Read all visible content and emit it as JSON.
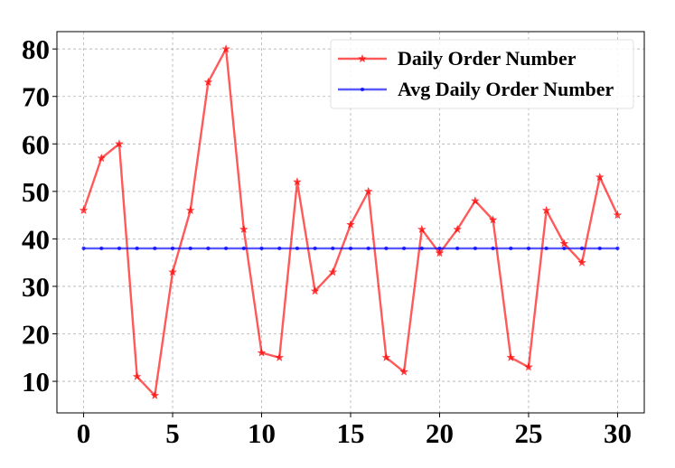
{
  "chart_data": {
    "type": "line",
    "x": [
      0,
      1,
      2,
      3,
      4,
      5,
      6,
      7,
      8,
      9,
      10,
      11,
      12,
      13,
      14,
      15,
      16,
      17,
      18,
      19,
      20,
      21,
      22,
      23,
      24,
      25,
      26,
      27,
      28,
      29,
      30
    ],
    "series": [
      {
        "name": "Daily Order Number",
        "color": "#ff0000",
        "marker": "star",
        "values": [
          46,
          57,
          60,
          11,
          7,
          33,
          46,
          73,
          80,
          42,
          16,
          15,
          52,
          29,
          33,
          43,
          50,
          15,
          12,
          42,
          37,
          42,
          48,
          44,
          15,
          13,
          46,
          39,
          35,
          53,
          45
        ]
      },
      {
        "name": "Avg Daily Order Number",
        "color": "#0000ff",
        "marker": "dot",
        "values": [
          38,
          38,
          38,
          38,
          38,
          38,
          38,
          38,
          38,
          38,
          38,
          38,
          38,
          38,
          38,
          38,
          38,
          38,
          38,
          38,
          38,
          38,
          38,
          38,
          38,
          38,
          38,
          38,
          38,
          38,
          38
        ]
      }
    ],
    "xticks": [
      0,
      5,
      10,
      15,
      20,
      25,
      30
    ],
    "yticks": [
      10,
      20,
      30,
      40,
      50,
      60,
      70,
      80
    ],
    "xlim": [
      -1.5,
      31.5
    ],
    "ylim": [
      3.35,
      83.65
    ],
    "grid": true,
    "legend_position": "top-right"
  }
}
